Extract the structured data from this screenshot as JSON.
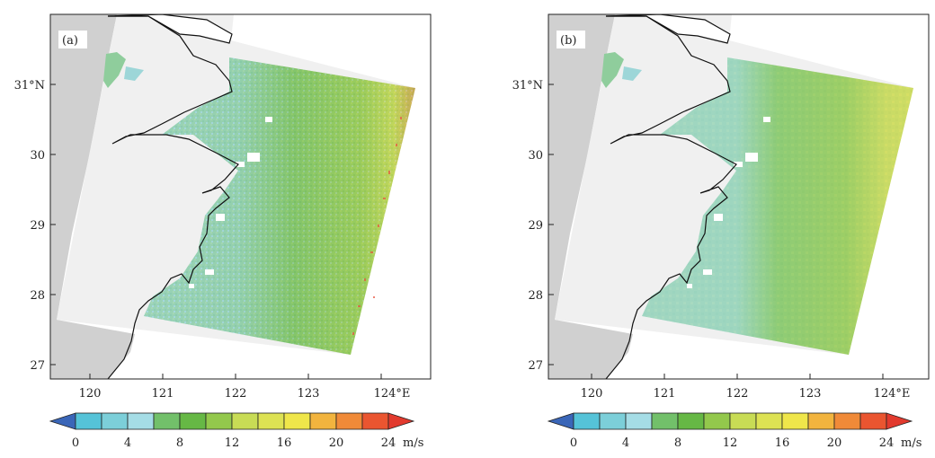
{
  "panels": [
    {
      "label": "(a)",
      "x_ticks": [
        "120",
        "121",
        "122",
        "123",
        "124°E"
      ],
      "y_ticks": [
        "31°N",
        "30",
        "29",
        "28",
        "27"
      ],
      "colorbar": {
        "tick_labels": [
          "0",
          "4",
          "8",
          "12",
          "16",
          "20",
          "24"
        ],
        "unit": "m/s"
      }
    },
    {
      "label": "(b)",
      "x_ticks": [
        "120",
        "121",
        "122",
        "123",
        "124°E"
      ],
      "y_ticks": [
        "31°N",
        "30",
        "29",
        "28",
        "27"
      ],
      "colorbar": {
        "tick_labels": [
          "0",
          "4",
          "8",
          "12",
          "16",
          "20",
          "24"
        ],
        "unit": "m/s"
      }
    }
  ],
  "colorbar_colors": [
    "#3a66b8",
    "#55c3d8",
    "#7ccfd9",
    "#a5dde6",
    "#72c06a",
    "#66b845",
    "#93c84c",
    "#c8dc55",
    "#dde253",
    "#efe64a",
    "#f2b43e",
    "#f08a38",
    "#ea5530",
    "#e23a2e"
  ],
  "colors": {
    "land": "#d0d0d0",
    "swath_background": "#f0f0f0",
    "low_wind": "#a9dbe3",
    "mid_wind": "#80c26c",
    "high_wind": "#e8e35c"
  }
}
